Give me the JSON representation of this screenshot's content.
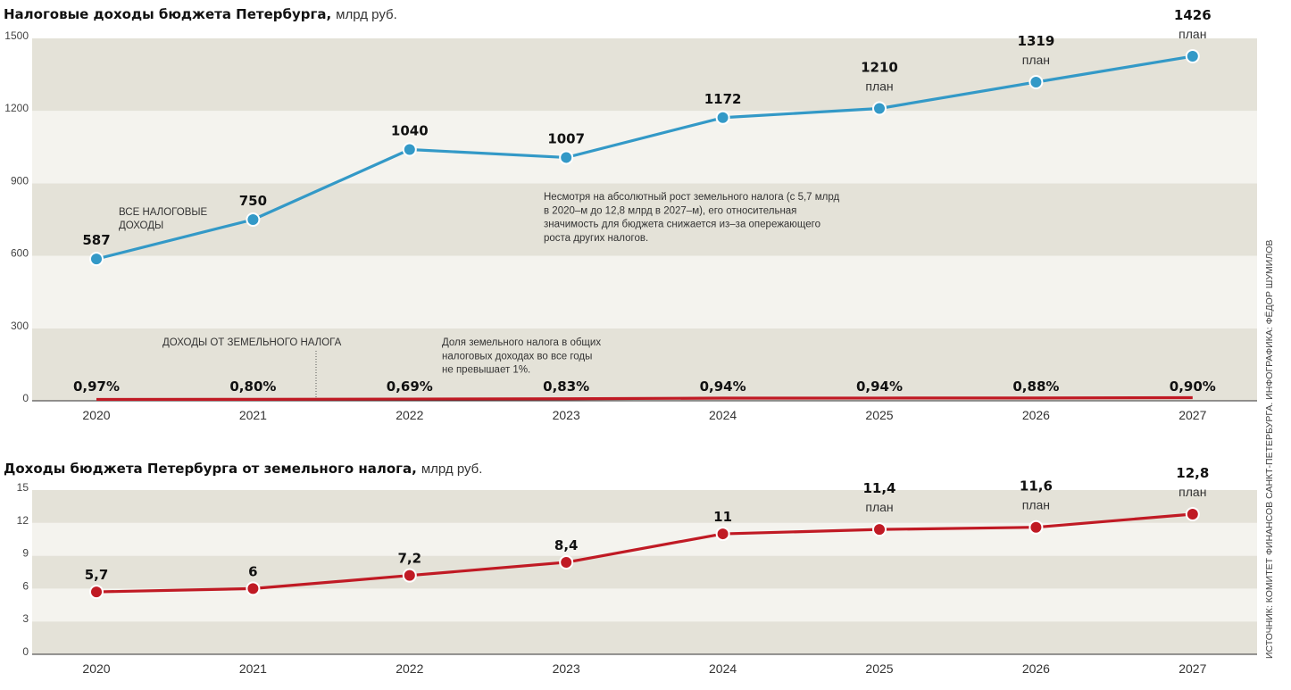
{
  "colors": {
    "band_dark": "#e4e2d8",
    "band_light": "#f4f3ee",
    "total_line": "#3399c7",
    "land_line": "#c01a24",
    "marker_stroke": "#ffffff"
  },
  "source_credit": "ИСТОЧНИК: КОМИТЕТ ФИНАНСОВ САНКТ-ПЕТЕРБУРГА. ИНФОГРАФИКА: ФЁДОР ШУМИЛОВ",
  "chart_data": [
    {
      "type": "line",
      "title": "Налоговые доходы бюджета Петербурга,",
      "title_unit": "млрд руб.",
      "x": [
        "2020",
        "2021",
        "2022",
        "2023",
        "2024",
        "2025",
        "2026",
        "2027"
      ],
      "ylim": [
        0,
        1500
      ],
      "yticks": [
        "0",
        "300",
        "600",
        "900",
        "1200",
        "1500"
      ],
      "grid": "alternating horizontal bands",
      "series": [
        {
          "name": "ВСЕ НАЛОГОВЫЕ ДОХОДЫ",
          "name_lines": [
            "ВСЕ НАЛОГОВЫЕ",
            "ДОХОДЫ"
          ],
          "values": [
            587,
            750,
            1040,
            1007,
            1172,
            1210,
            1319,
            1426
          ],
          "labels": [
            "587",
            "750",
            "1040",
            "1007",
            "1172",
            "1210",
            "1319",
            "1426"
          ],
          "plan": [
            false,
            false,
            false,
            false,
            false,
            true,
            true,
            true
          ],
          "plan_label": "план"
        },
        {
          "name": "ДОХОДЫ ОТ ЗЕМЕЛЬНОГО НАЛОГА",
          "values": [
            5.7,
            6,
            7.2,
            8.4,
            11,
            11.4,
            11.6,
            12.8
          ],
          "share_labels": [
            "0,97%",
            "0,80%",
            "0,69%",
            "0,83%",
            "0,94%",
            "0,94%",
            "0,88%",
            "0,90%"
          ]
        }
      ],
      "annotations": {
        "note_main": [
          "Несмотря на абсолютный рост земельного налога (с 5,7 млрд",
          "в 2020–м до 12,8 млрд в 2027–м), его относительная",
          "значимость для бюджета снижается из–за опережающего",
          "роста других налогов."
        ],
        "note_share": [
          "Доля земельного налога в общих",
          "налоговых доходах во все годы",
          "не превышает 1%."
        ]
      }
    },
    {
      "type": "line",
      "title": "Доходы бюджета Петербурга от земельного налога,",
      "title_unit": "млрд руб.",
      "x": [
        "2020",
        "2021",
        "2022",
        "2023",
        "2024",
        "2025",
        "2026",
        "2027"
      ],
      "ylim": [
        0,
        15
      ],
      "yticks": [
        "0",
        "3",
        "6",
        "9",
        "12",
        "15"
      ],
      "grid": "alternating horizontal bands",
      "series": [
        {
          "values": [
            5.7,
            6,
            7.2,
            8.4,
            11,
            11.4,
            11.6,
            12.8
          ],
          "labels": [
            "5,7",
            "6",
            "7,2",
            "8,4",
            "11",
            "11,4",
            "11,6",
            "12,8"
          ],
          "plan": [
            false,
            false,
            false,
            false,
            false,
            true,
            true,
            true
          ],
          "plan_label": "план"
        }
      ]
    }
  ]
}
